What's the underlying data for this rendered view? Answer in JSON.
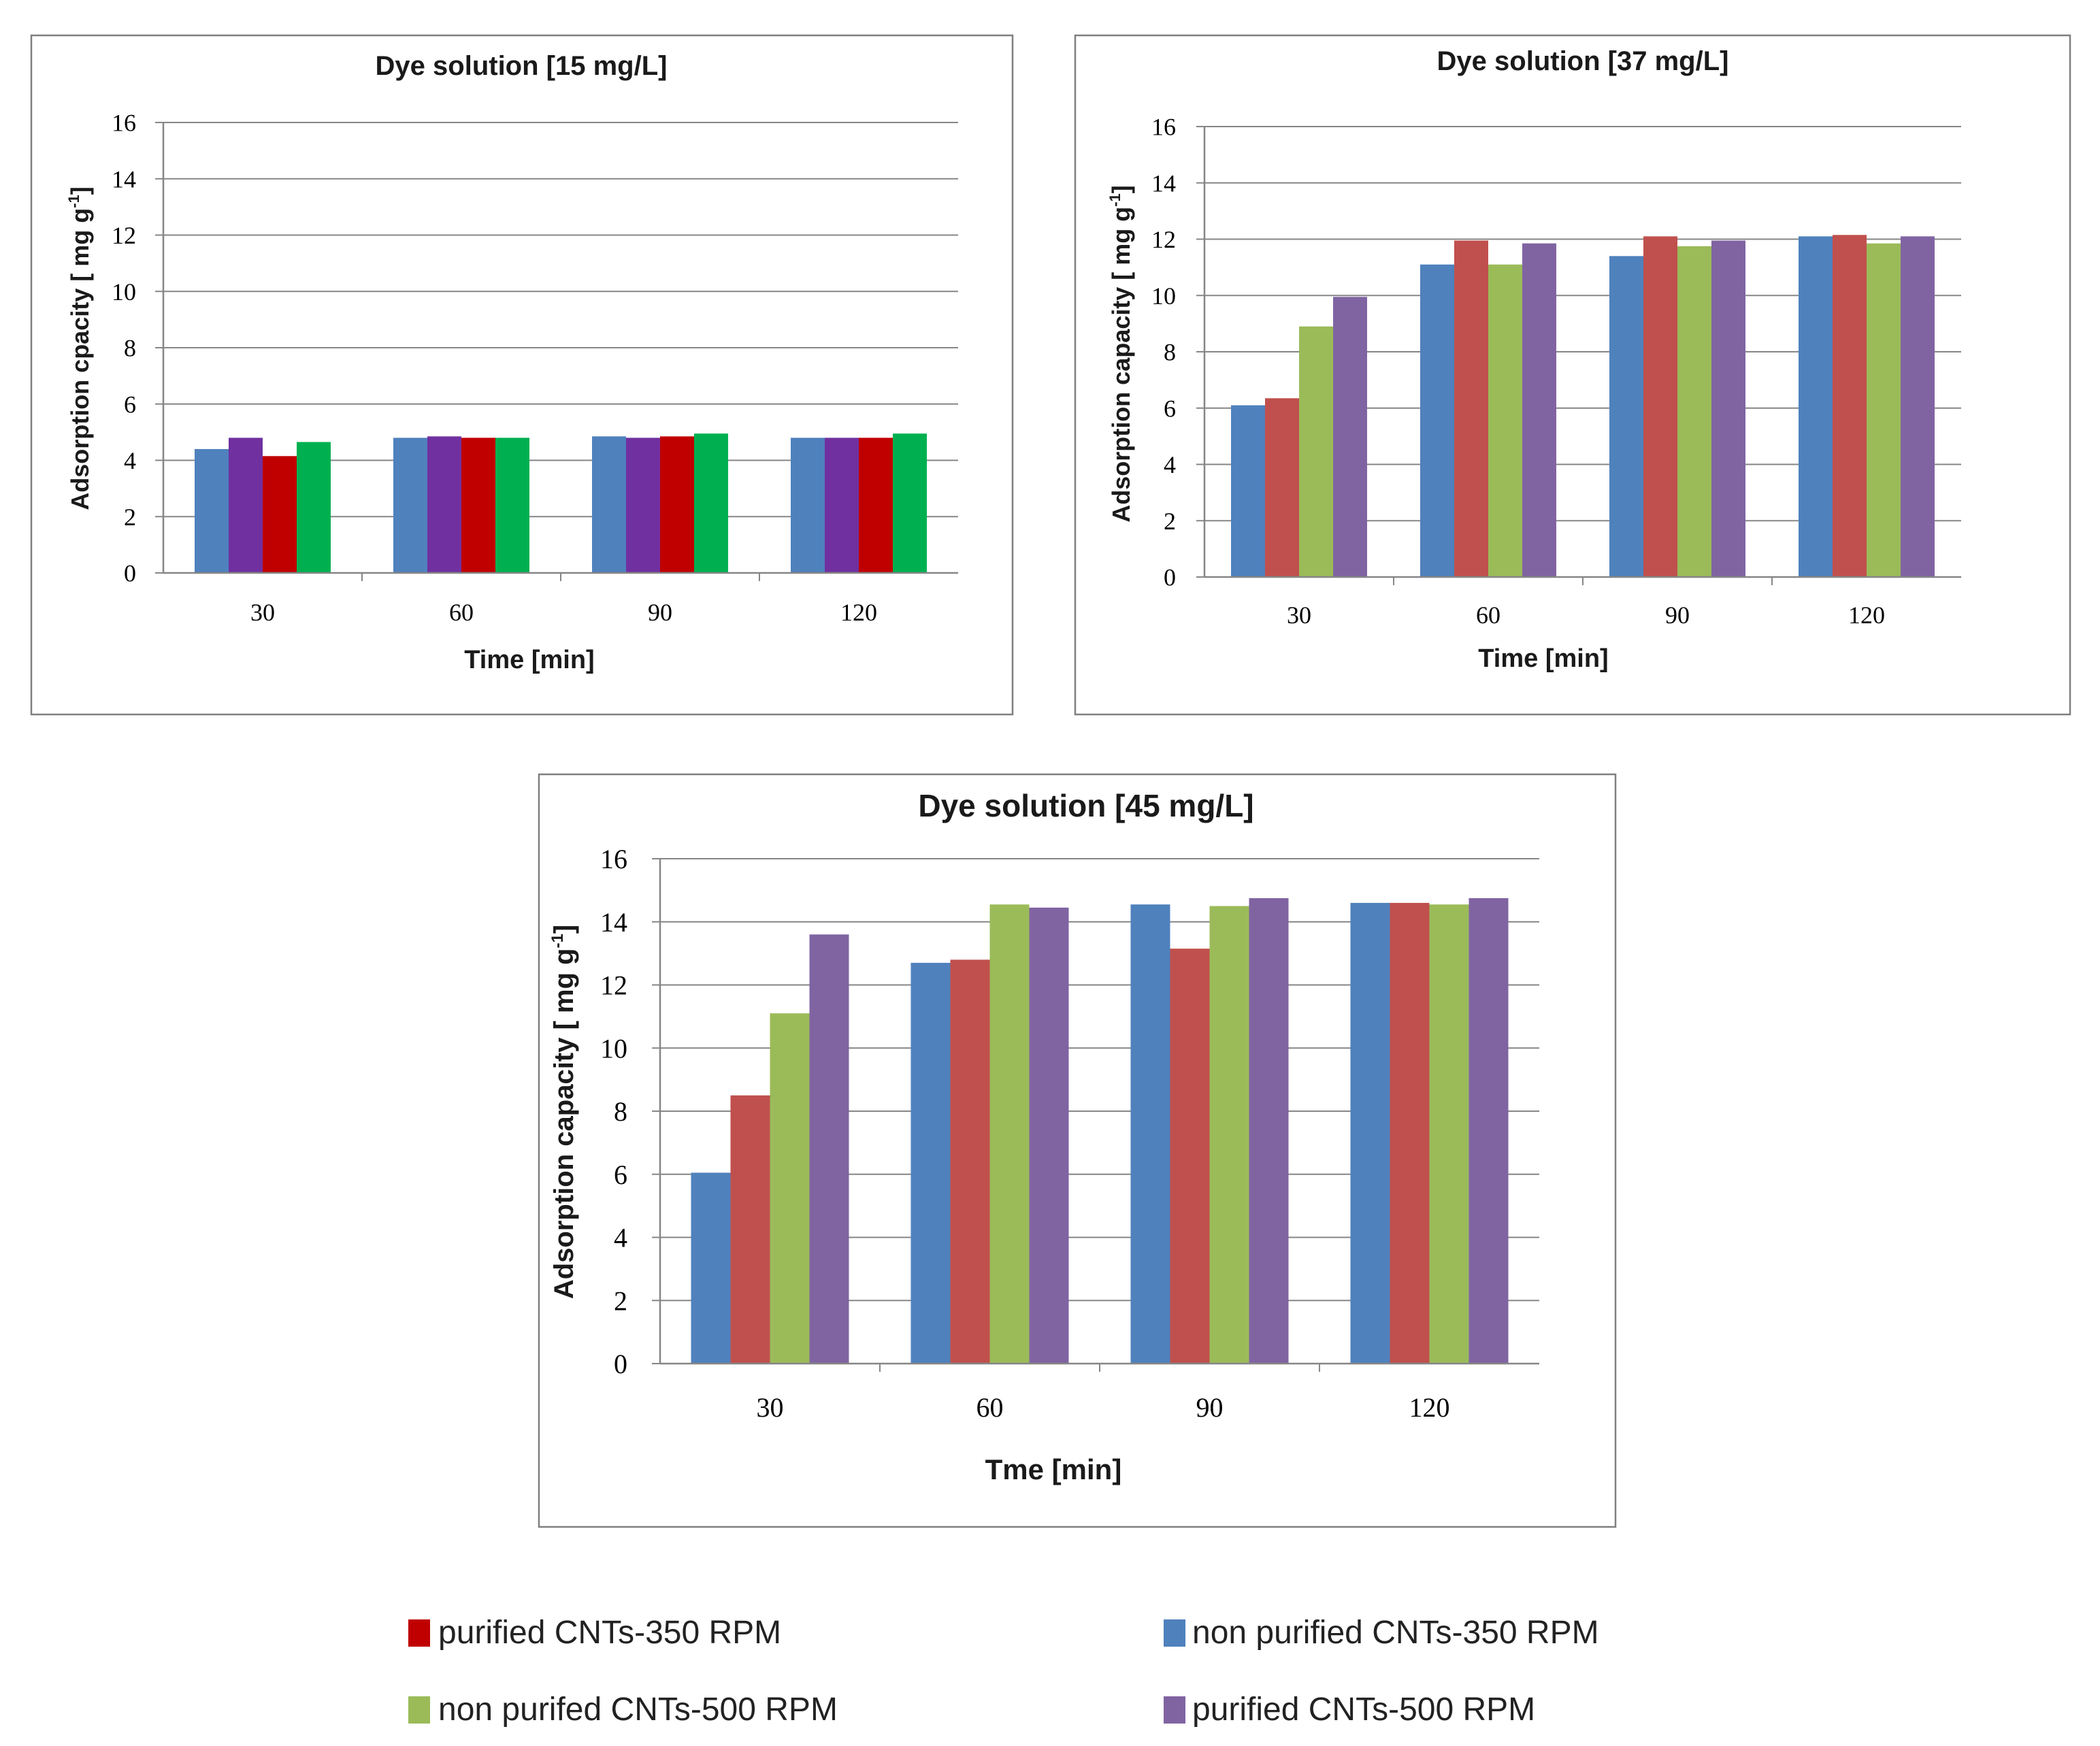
{
  "series_colors": {
    "blue": "#4f81bd",
    "red_soft": "#c0504d",
    "green_soft": "#9bbb59",
    "purple_soft": "#8064a2",
    "purple_strong": "#7030a0",
    "red_strong": "#c00000",
    "green_strong": "#00b050"
  },
  "legend": [
    {
      "label": "purified CNTs-350 RPM",
      "color": "#c00000"
    },
    {
      "label": "non purified CNTs-350 RPM",
      "color": "#4f81bd"
    },
    {
      "label": "non purifed CNTs-500 RPM",
      "color": "#9bbb59"
    },
    {
      "label": "purified CNTs-500 RPM",
      "color": "#8064a2"
    }
  ],
  "chart_data": [
    {
      "type": "bar",
      "title": "Dye solution [15 mg/L]",
      "xlabel": "Time [min]",
      "ylabel": "Adsorption cpacity [ mg g-1]",
      "ylabel_main": "Adsorption cpacity [ mg g",
      "ylabel_sup": "-1",
      "ylabel_end": "]",
      "ylim": [
        0,
        16
      ],
      "yticks": [
        0,
        2,
        4,
        6,
        8,
        10,
        12,
        14,
        16
      ],
      "grid": true,
      "categories": [
        "30",
        "60",
        "90",
        "120"
      ],
      "series": [
        {
          "name": "non purified CNTs-350 RPM",
          "color": "#4f81bd",
          "values": [
            4.4,
            4.8,
            4.85,
            4.8
          ]
        },
        {
          "name": "purified CNTs-500 RPM",
          "color": "#7030a0",
          "values": [
            4.8,
            4.85,
            4.8,
            4.8
          ]
        },
        {
          "name": "purified CNTs-350 RPM",
          "color": "#c00000",
          "values": [
            4.15,
            4.8,
            4.85,
            4.8
          ]
        },
        {
          "name": "non purifed CNTs-500 RPM",
          "color": "#00b050",
          "values": [
            4.65,
            4.8,
            4.95,
            4.95
          ]
        }
      ]
    },
    {
      "type": "bar",
      "title": "Dye solution [37 mg/L]",
      "xlabel": "Time [min]",
      "ylabel": "Adsorption capacity [ mg g-1]",
      "ylabel_main": "Adsorption capacity [ mg g",
      "ylabel_sup": "-1",
      "ylabel_end": "]",
      "ylim": [
        0,
        16
      ],
      "yticks": [
        0,
        2,
        4,
        6,
        8,
        10,
        12,
        14,
        16
      ],
      "grid": true,
      "categories": [
        "30",
        "60",
        "90",
        "120"
      ],
      "series": [
        {
          "name": "non purified CNTs-350 RPM",
          "color": "#4f81bd",
          "values": [
            6.1,
            11.1,
            11.4,
            12.1
          ]
        },
        {
          "name": "purified CNTs-350 RPM",
          "color": "#c0504d",
          "values": [
            6.35,
            11.95,
            12.1,
            12.15
          ]
        },
        {
          "name": "non purifed CNTs-500 RPM",
          "color": "#9bbb59",
          "values": [
            8.9,
            11.1,
            11.75,
            11.85
          ]
        },
        {
          "name": "purified CNTs-500 RPM",
          "color": "#8064a2",
          "values": [
            9.95,
            11.85,
            11.95,
            12.1
          ]
        }
      ]
    },
    {
      "type": "bar",
      "title": "Dye solution [45 mg/L]",
      "xlabel": "Tme [min]",
      "ylabel": "Adsorption capacity [ mg g-1]",
      "ylabel_main": "Adsorption capacity [ mg g",
      "ylabel_sup": "-1",
      "ylabel_end": "]",
      "ylim": [
        0,
        16
      ],
      "yticks": [
        0,
        2,
        4,
        6,
        8,
        10,
        12,
        14,
        16
      ],
      "grid": true,
      "categories": [
        "30",
        "60",
        "90",
        "120"
      ],
      "series": [
        {
          "name": "non purified CNTs-350 RPM",
          "color": "#4f81bd",
          "values": [
            6.05,
            12.7,
            14.55,
            14.6
          ]
        },
        {
          "name": "purified CNTs-350 RPM",
          "color": "#c0504d",
          "values": [
            8.5,
            12.8,
            13.15,
            14.6
          ]
        },
        {
          "name": "non purifed CNTs-500 RPM",
          "color": "#9bbb59",
          "values": [
            11.1,
            14.55,
            14.5,
            14.55
          ]
        },
        {
          "name": "purified CNTs-500 RPM",
          "color": "#8064a2",
          "values": [
            13.6,
            14.45,
            14.75,
            14.75
          ]
        }
      ]
    }
  ]
}
